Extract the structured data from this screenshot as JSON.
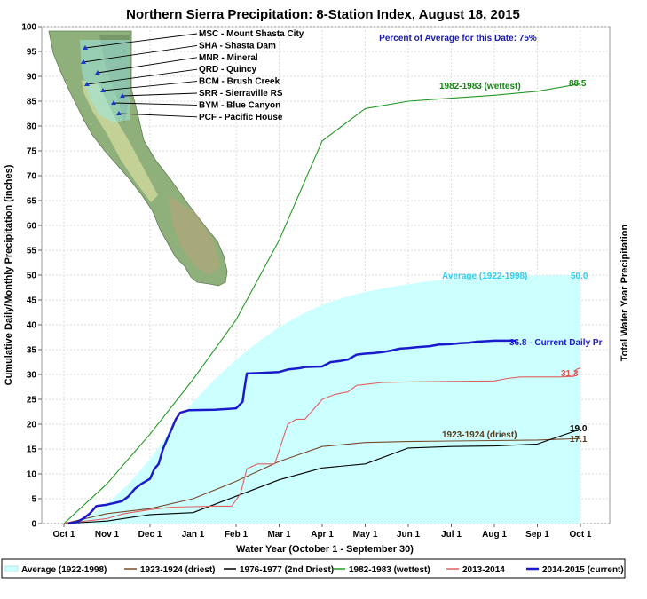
{
  "chart_data": {
    "type": "line",
    "title": "Northern Sierra Precipitation: 8-Station Index, August 18, 2015",
    "subtitle": "Percent of Average for this Date: 75%",
    "xlabel": "Water Year (October 1 - September 30)",
    "ylabel": "Cumulative Daily/Monthly Precipitation (inches)",
    "ylabel_right": "Total Water Year Precipitation",
    "ylim": [
      0,
      100
    ],
    "yticks": [
      0,
      5,
      10,
      15,
      20,
      25,
      30,
      35,
      40,
      45,
      50,
      55,
      60,
      65,
      70,
      75,
      80,
      85,
      90,
      95,
      100
    ],
    "xticks": [
      "Oct 1",
      "Nov 1",
      "Dec 1",
      "Jan 1",
      "Feb 1",
      "Mar 1",
      "Apr 1",
      "May 1",
      "Jun 1",
      "Jul 1",
      "Aug 1",
      "Sep 1",
      "Oct 1"
    ],
    "grid": true,
    "legend_position": "bottom",
    "stations": [
      "MSC - Mount Shasta City",
      "SHA - Shasta Dam",
      "MNR - Mineral",
      "QRD - Quincy",
      "BCM - Brush Creek",
      "SRR - Sierraville RS",
      "BYM - Blue Canyon",
      "PCF - Pacific House"
    ],
    "series": [
      {
        "name": "Average (1922-1998)",
        "style": "area",
        "color": "#ccffff",
        "label_color": "#33ccee",
        "annotation": "Average (1922-1998)",
        "end_value": "50.0",
        "points": [
          [
            0,
            0
          ],
          [
            0.5,
            1
          ],
          [
            1,
            4
          ],
          [
            1.5,
            8
          ],
          [
            2,
            13
          ],
          [
            2.5,
            19
          ],
          [
            3,
            24.5
          ],
          [
            3.5,
            29
          ],
          [
            4,
            33
          ],
          [
            4.5,
            36.5
          ],
          [
            5,
            39.5
          ],
          [
            5.5,
            42
          ],
          [
            6,
            44
          ],
          [
            6.5,
            45.5
          ],
          [
            7,
            46.6
          ],
          [
            7.5,
            47.5
          ],
          [
            8,
            48.2
          ],
          [
            8.5,
            48.8
          ],
          [
            9,
            49.2
          ],
          [
            9.5,
            49.5
          ],
          [
            10,
            49.7
          ],
          [
            10.5,
            49.8
          ],
          [
            11,
            49.9
          ],
          [
            12,
            50
          ]
        ]
      },
      {
        "name": "1923-1924 (driest)",
        "style": "line",
        "color": "#7a4a2a",
        "label_color": "#5a3a1a",
        "annotation": "1923-1924 (driest)",
        "end_value": "17.1",
        "points": [
          [
            0,
            0
          ],
          [
            1,
            2
          ],
          [
            2,
            3
          ],
          [
            3,
            5
          ],
          [
            4,
            8.5
          ],
          [
            5,
            12.5
          ],
          [
            6,
            15.5
          ],
          [
            7,
            16.3
          ],
          [
            8,
            16.5
          ],
          [
            9,
            16.6
          ],
          [
            10,
            16.7
          ],
          [
            11,
            16.8
          ],
          [
            12,
            17.1
          ]
        ]
      },
      {
        "name": "1976-1977 (2nd Driest)",
        "style": "line",
        "color": "#000000",
        "label_color": "#000000",
        "end_value": "19.0",
        "points": [
          [
            0,
            0
          ],
          [
            1,
            0.5
          ],
          [
            2,
            1.8
          ],
          [
            3,
            2.2
          ],
          [
            4,
            5.5
          ],
          [
            5,
            8.8
          ],
          [
            6,
            11.2
          ],
          [
            7,
            12
          ],
          [
            8,
            15.2
          ],
          [
            9,
            15.5
          ],
          [
            10,
            15.6
          ],
          [
            11,
            16
          ],
          [
            12,
            19
          ]
        ]
      },
      {
        "name": "1982-1983 (wettest)",
        "style": "line",
        "color": "#229922",
        "label_color": "#118811",
        "annotation": "1982-1983 (wettest)",
        "end_value": "88.5",
        "points": [
          [
            0,
            0
          ],
          [
            1,
            8
          ],
          [
            2,
            18
          ],
          [
            3,
            29
          ],
          [
            4,
            41
          ],
          [
            5,
            57
          ],
          [
            6,
            77
          ],
          [
            7,
            83.5
          ],
          [
            8,
            85
          ],
          [
            9,
            85.6
          ],
          [
            10,
            86.2
          ],
          [
            11,
            87
          ],
          [
            12,
            88.5
          ]
        ]
      },
      {
        "name": "2013-2014",
        "style": "line",
        "color": "#e06060",
        "label_color": "#e05050",
        "end_value": "31.3",
        "points": [
          [
            0,
            0
          ],
          [
            1,
            1
          ],
          [
            1.4,
            2
          ],
          [
            2,
            2.8
          ],
          [
            2.5,
            3.3
          ],
          [
            3,
            3.4
          ],
          [
            3.5,
            3.5
          ],
          [
            3.9,
            3.5
          ],
          [
            4.1,
            6
          ],
          [
            4.25,
            11
          ],
          [
            4.5,
            12
          ],
          [
            4.9,
            12
          ],
          [
            5.2,
            20
          ],
          [
            5.4,
            21
          ],
          [
            5.6,
            21
          ],
          [
            5.9,
            24
          ],
          [
            6,
            25
          ],
          [
            6.3,
            26
          ],
          [
            6.6,
            26.5
          ],
          [
            6.8,
            27.8
          ],
          [
            7,
            28
          ],
          [
            7.4,
            28.4
          ],
          [
            8,
            28.5
          ],
          [
            9,
            28.6
          ],
          [
            10,
            28.7
          ],
          [
            10.3,
            29.2
          ],
          [
            10.6,
            29.5
          ],
          [
            11.5,
            29.5
          ],
          [
            11.85,
            29.6
          ],
          [
            11.9,
            31
          ],
          [
            12,
            31.3
          ]
        ]
      },
      {
        "name": "2014-2015 (current)",
        "style": "line",
        "color": "#1a1acc",
        "label_color": "#1a1acc",
        "annotation": "36.8 -  Current Daily Pr",
        "end_value": "36.8",
        "points": [
          [
            0.1,
            0
          ],
          [
            0.3,
            0.3
          ],
          [
            0.45,
            1
          ],
          [
            0.6,
            2
          ],
          [
            0.75,
            3.5
          ],
          [
            1,
            3.8
          ],
          [
            1.2,
            4.2
          ],
          [
            1.35,
            4.5
          ],
          [
            1.5,
            5.5
          ],
          [
            1.65,
            7
          ],
          [
            1.8,
            8
          ],
          [
            2,
            9
          ],
          [
            2.1,
            11
          ],
          [
            2.2,
            12
          ],
          [
            2.3,
            15
          ],
          [
            2.4,
            17
          ],
          [
            2.5,
            19
          ],
          [
            2.6,
            21
          ],
          [
            2.7,
            22.3
          ],
          [
            2.9,
            22.8
          ],
          [
            3.5,
            22.9
          ],
          [
            4,
            23.2
          ],
          [
            4.15,
            24.5
          ],
          [
            4.2,
            27.5
          ],
          [
            4.25,
            30.2
          ],
          [
            4.6,
            30.3
          ],
          [
            5,
            30.5
          ],
          [
            5.2,
            31
          ],
          [
            5.5,
            31.3
          ],
          [
            5.6,
            31.5
          ],
          [
            6,
            31.6
          ],
          [
            6.2,
            32.5
          ],
          [
            6.4,
            32.7
          ],
          [
            6.6,
            33
          ],
          [
            6.8,
            34
          ],
          [
            7,
            34.2
          ],
          [
            7.2,
            34.3
          ],
          [
            7.4,
            34.5
          ],
          [
            7.6,
            34.8
          ],
          [
            7.8,
            35.2
          ],
          [
            8,
            35.3
          ],
          [
            8.2,
            35.5
          ],
          [
            8.5,
            35.7
          ],
          [
            8.7,
            36
          ],
          [
            9,
            36.1
          ],
          [
            9.2,
            36.3
          ],
          [
            9.4,
            36.4
          ],
          [
            9.6,
            36.6
          ],
          [
            9.8,
            36.7
          ],
          [
            10,
            36.8
          ],
          [
            10.5,
            36.8
          ]
        ]
      }
    ]
  }
}
